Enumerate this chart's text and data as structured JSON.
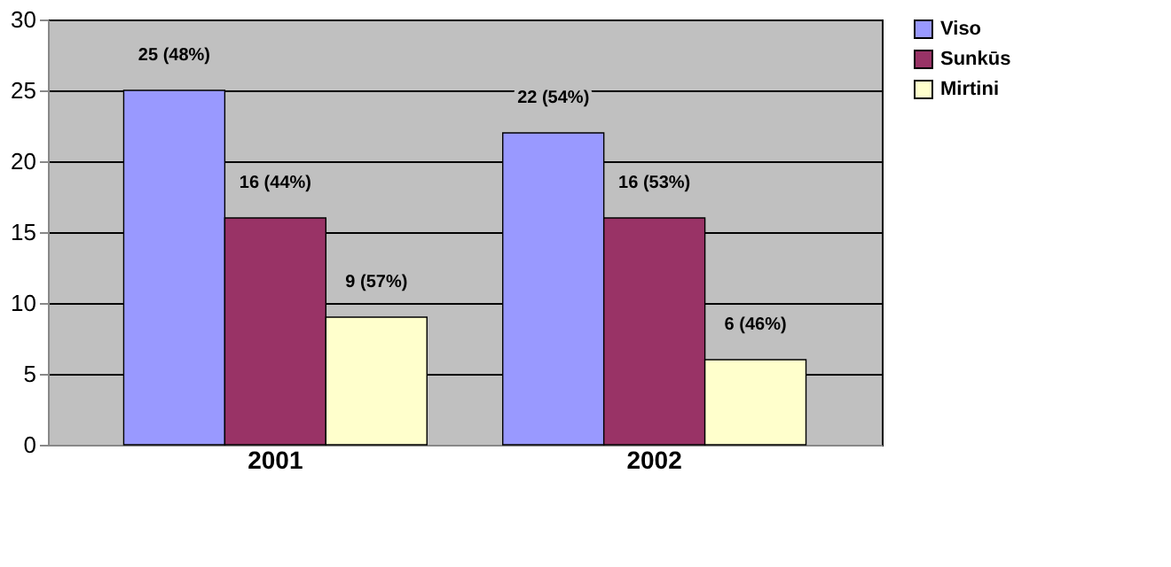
{
  "chart_data": {
    "type": "bar",
    "categories": [
      "2001",
      "2002"
    ],
    "series": [
      {
        "name": "Viso",
        "color": "#9999ff",
        "values": [
          25,
          22
        ],
        "value_labels": [
          "25 (48%)",
          "22 (54%)"
        ]
      },
      {
        "name": "Sunkūs",
        "color": "#993366",
        "values": [
          16,
          16
        ],
        "value_labels": [
          "16 (44%)",
          "16 (53%)"
        ]
      },
      {
        "name": "Mirtini",
        "color": "#ffffcc",
        "values": [
          9,
          6
        ],
        "value_labels": [
          "9 (57%)",
          "6 (46%)"
        ]
      }
    ],
    "ylim": [
      0,
      30
    ],
    "yticks": [
      0,
      5,
      10,
      15,
      20,
      25,
      30
    ],
    "grid": "y",
    "legend": "right"
  }
}
